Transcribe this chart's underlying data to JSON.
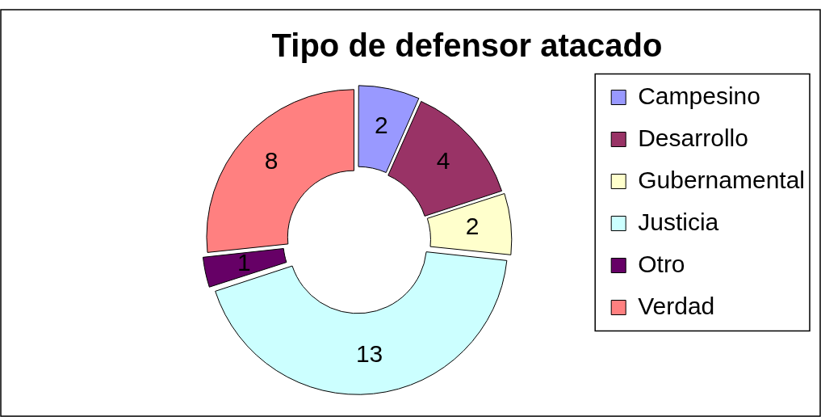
{
  "chart_data": {
    "type": "donut",
    "title": "Tipo de defensor atacado",
    "categories": [
      "Campesino",
      "Desarrollo",
      "Gubernamental",
      "Justicia",
      "Otro",
      "Verdad"
    ],
    "values": [
      2,
      4,
      2,
      13,
      1,
      8
    ],
    "colors": [
      "#9999ff",
      "#993366",
      "#ffffcc",
      "#ccffff",
      "#660066",
      "#ff8080"
    ],
    "data_labels": true,
    "legend": "right"
  }
}
